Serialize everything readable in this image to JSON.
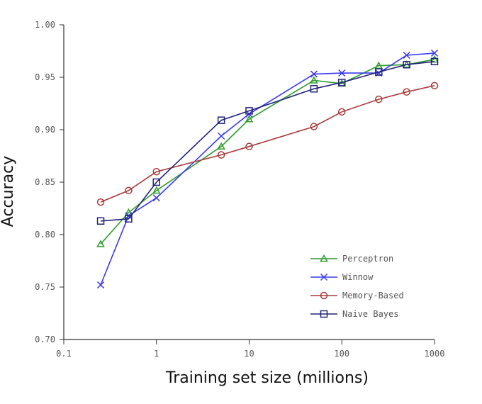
{
  "chart_data": {
    "type": "line",
    "title": "",
    "xlabel": "Training set size (millions)",
    "ylabel": "Accuracy",
    "xscale": "log",
    "xlim": [
      0.1,
      1000
    ],
    "ylim": [
      0.7,
      1.0
    ],
    "xticks": [
      0.1,
      1,
      10,
      100,
      1000
    ],
    "xtick_labels": [
      "0.1",
      "1",
      "10",
      "100",
      "1000"
    ],
    "yticks": [
      0.7,
      0.75,
      0.8,
      0.85,
      0.9,
      0.95,
      1.0
    ],
    "ytick_labels": [
      "0.70",
      "0.75",
      "0.80",
      "0.85",
      "0.90",
      "0.95",
      "1.00"
    ],
    "legend_position": "bottom-right",
    "grid": false,
    "series": [
      {
        "name": "Perceptron",
        "color": "#2e9a2e",
        "marker": "triangle",
        "x": [
          0.25,
          0.5,
          1,
          5,
          10,
          50,
          100,
          250,
          500,
          1000
        ],
        "y": [
          0.791,
          0.821,
          0.842,
          0.884,
          0.91,
          0.947,
          0.944,
          0.961,
          0.962,
          0.967
        ]
      },
      {
        "name": "Winnow",
        "color": "#3a3aee",
        "marker": "x",
        "x": [
          0.25,
          0.5,
          1,
          5,
          10,
          50,
          100,
          250,
          500,
          1000
        ],
        "y": [
          0.752,
          0.818,
          0.835,
          0.894,
          0.915,
          0.953,
          0.954,
          0.954,
          0.971,
          0.973
        ]
      },
      {
        "name": "Memory-Based",
        "color": "#a83a3a",
        "marker": "circle",
        "x": [
          0.25,
          0.5,
          1,
          5,
          10,
          50,
          100,
          250,
          500,
          1000
        ],
        "y": [
          0.831,
          0.842,
          0.86,
          0.876,
          0.884,
          0.903,
          0.917,
          0.929,
          0.936,
          0.942
        ]
      },
      {
        "name": "Naive Bayes",
        "color": "#23237a",
        "marker": "square",
        "x": [
          0.25,
          0.5,
          1,
          5,
          10,
          50,
          100,
          250,
          500,
          1000
        ],
        "y": [
          0.813,
          0.815,
          0.85,
          0.909,
          0.918,
          0.939,
          0.945,
          0.955,
          0.962,
          0.965
        ]
      }
    ]
  }
}
